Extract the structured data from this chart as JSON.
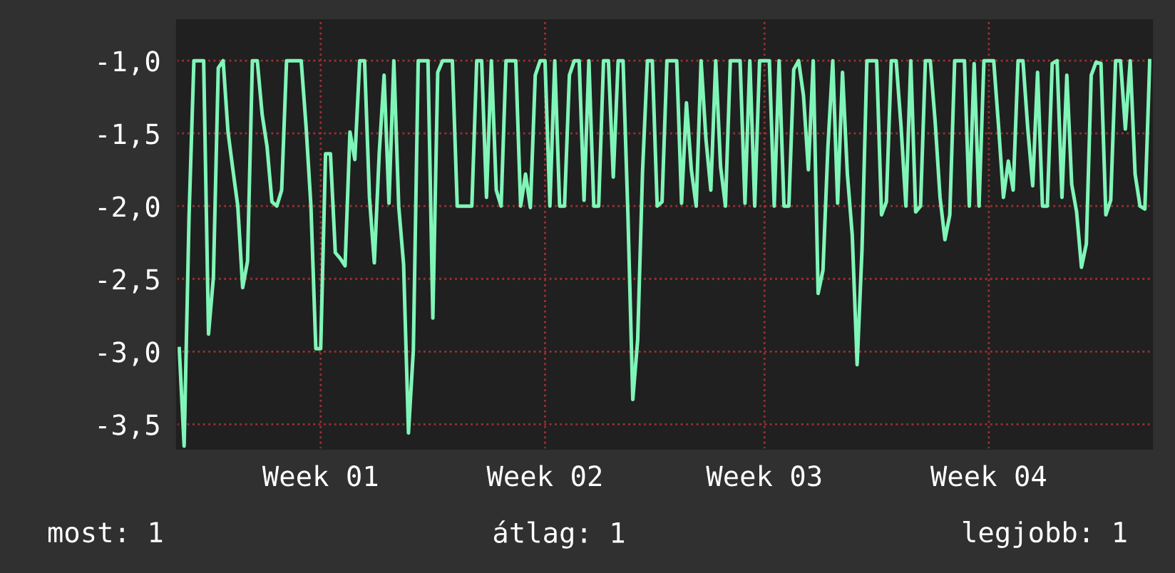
{
  "chart_data": {
    "type": "line",
    "categories": [
      null,
      null,
      null,
      null,
      null,
      null,
      null,
      null,
      null,
      null,
      null,
      null,
      null,
      null,
      null,
      null,
      null,
      null,
      null,
      null,
      null,
      null,
      null,
      null,
      null,
      null,
      null,
      null,
      null,
      "Week 01",
      null,
      null,
      null,
      null,
      null,
      null,
      null,
      null,
      null,
      null,
      null,
      null,
      null,
      null,
      null,
      null,
      null,
      null,
      null,
      null,
      null,
      null,
      null,
      null,
      null,
      null,
      null,
      null,
      null,
      null,
      null,
      null,
      null,
      null,
      null,
      null,
      null,
      null,
      null,
      null,
      null,
      null,
      null,
      null,
      null,
      "Week 02",
      null,
      null,
      null,
      null,
      null,
      null,
      null,
      null,
      null,
      null,
      null,
      null,
      null,
      null,
      null,
      null,
      null,
      null,
      null,
      null,
      null,
      null,
      null,
      null,
      null,
      null,
      null,
      null,
      null,
      null,
      null,
      null,
      null,
      null,
      null,
      null,
      null,
      null,
      null,
      null,
      null,
      null,
      null,
      null,
      "Week 03",
      null,
      null,
      null,
      null,
      null,
      null,
      null,
      null,
      null,
      null,
      null,
      null,
      null,
      null,
      null,
      null,
      null,
      null,
      null,
      null,
      null,
      null,
      null,
      null,
      null,
      null,
      null,
      null,
      null,
      null,
      null,
      null,
      null,
      null,
      null,
      null,
      null,
      null,
      null,
      null,
      null,
      null,
      null,
      null,
      null,
      "Week 04",
      null,
      null,
      null,
      null,
      null,
      null,
      null,
      null,
      null,
      null,
      null,
      null,
      null,
      null,
      null,
      null,
      null,
      null,
      null,
      null,
      null,
      null,
      null,
      null,
      null,
      null,
      null,
      null,
      null,
      null,
      null,
      null,
      null
    ],
    "series": [
      {
        "color": "#80f5b8",
        "values": [
          -2.98,
          -3.65,
          -2.08,
          -1.0,
          -1.0,
          -1.0,
          -2.88,
          -2.49,
          -1.05,
          -1.0,
          -1.49,
          -1.75,
          -2.0,
          -2.56,
          -2.38,
          -1.0,
          -1.0,
          -1.37,
          -1.59,
          -1.97,
          -2.0,
          -1.89,
          -1.0,
          -1.0,
          -1.0,
          -1.0,
          -1.45,
          -2.0,
          -2.98,
          -2.98,
          -1.64,
          -1.64,
          -2.32,
          -2.36,
          -2.41,
          -1.49,
          -1.68,
          -1.0,
          -1.0,
          -1.94,
          -2.39,
          -1.64,
          -1.1,
          -1.98,
          -1.0,
          -2.0,
          -2.4,
          -3.56,
          -2.99,
          -1.0,
          -1.0,
          -1.0,
          -2.77,
          -1.08,
          -1.0,
          -1.0,
          -1.0,
          -2.0,
          -2.0,
          -2.0,
          -2.0,
          -1.0,
          -1.0,
          -1.94,
          -1.0,
          -1.89,
          -2.0,
          -1.0,
          -1.0,
          -1.0,
          -2.0,
          -1.78,
          -2.01,
          -1.1,
          -1.0,
          -1.0,
          -2.0,
          -1.0,
          -2.0,
          -2.0,
          -1.1,
          -1.0,
          -1.0,
          -1.96,
          -1.0,
          -2.0,
          -2.0,
          -1.0,
          -1.0,
          -1.8,
          -1.0,
          -1.0,
          -2.06,
          -3.33,
          -2.92,
          -1.76,
          -1.0,
          -1.0,
          -2.0,
          -1.97,
          -1.0,
          -1.0,
          -1.0,
          -1.98,
          -1.29,
          -1.75,
          -2.0,
          -1.0,
          -1.54,
          -1.89,
          -1.0,
          -1.73,
          -2.0,
          -1.0,
          -1.0,
          -1.0,
          -1.98,
          -1.0,
          -2.0,
          -1.0,
          -1.0,
          -1.0,
          -2.0,
          -1.0,
          -2.0,
          -2.0,
          -1.06,
          -1.0,
          -1.24,
          -1.75,
          -1.0,
          -2.6,
          -2.44,
          -1.6,
          -1.0,
          -1.98,
          -1.08,
          -1.78,
          -2.2,
          -3.09,
          -2.3,
          -1.0,
          -1.0,
          -1.0,
          -2.06,
          -1.97,
          -1.0,
          -1.0,
          -1.45,
          -2.0,
          -1.0,
          -2.04,
          -2.0,
          -1.0,
          -1.0,
          -1.42,
          -1.94,
          -2.23,
          -2.06,
          -1.0,
          -1.0,
          -1.0,
          -2.0,
          -1.02,
          -2.0,
          -1.0,
          -1.0,
          -1.0,
          -1.45,
          -1.94,
          -1.69,
          -1.89,
          -1.0,
          -1.0,
          -1.47,
          -1.86,
          -1.08,
          -2.0,
          -2.0,
          -1.02,
          -1.0,
          -1.94,
          -1.1,
          -1.85,
          -2.04,
          -2.42,
          -2.26,
          -1.1,
          -1.01,
          -1.02,
          -2.06,
          -1.96,
          -1.0,
          -1.0,
          -1.47,
          -1.0,
          -1.78,
          -2.0,
          -2.02,
          -1.0
        ]
      }
    ],
    "ylim": [
      -3.67,
      -0.72
    ],
    "yticks": [
      {
        "value": -3.5,
        "label": "-3,5"
      },
      {
        "value": -3.0,
        "label": "-3,0"
      },
      {
        "value": -2.5,
        "label": "-2,5"
      },
      {
        "value": -2.0,
        "label": "-2,0"
      },
      {
        "value": -1.5,
        "label": "-1,5"
      },
      {
        "value": -1.0,
        "label": "-1,0"
      }
    ],
    "grid": true,
    "line_style": "solid",
    "marker": "none",
    "annotations": [
      "most: 1",
      "átlag: 1",
      "legjobb: 1"
    ]
  }
}
